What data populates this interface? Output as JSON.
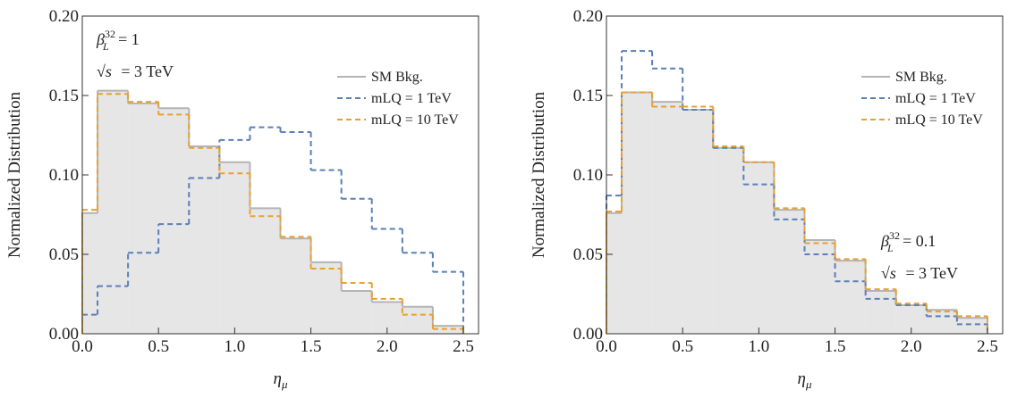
{
  "chart_data": [
    {
      "type": "histogram",
      "ylabel": "Normalized Distribution",
      "xlabel": "η",
      "xlabel_sub": "μ",
      "bins": [
        0,
        0.1,
        0.3,
        0.5,
        0.7,
        0.9,
        1.1,
        1.3,
        1.5,
        1.7,
        1.9,
        2.1,
        2.3,
        2.5
      ],
      "xlim": [
        0,
        2.6
      ],
      "ylim": [
        0,
        0.2
      ],
      "xticks": [
        {
          "value": 0,
          "label": "0.0"
        },
        {
          "value": 0.5,
          "label": "0.5"
        },
        {
          "value": 1,
          "label": "1.0"
        },
        {
          "value": 1.5,
          "label": "1.5"
        },
        {
          "value": 2,
          "label": "2.0"
        },
        {
          "value": 2.5,
          "label": "2.5"
        }
      ],
      "yticks": [
        {
          "value": 0,
          "label": "0.00"
        },
        {
          "value": 0.05,
          "label": "0.05"
        },
        {
          "value": 0.1,
          "label": "0.10"
        },
        {
          "value": 0.15,
          "label": "0.15"
        },
        {
          "value": 0.2,
          "label": "0.20"
        }
      ],
      "legend": "upper right",
      "annotations": [
        {
          "symbol": "β",
          "sub": "L",
          "sup": "32",
          "text": " = 1"
        },
        {
          "symbol": "√s",
          "text": " = 3 TeV"
        }
      ],
      "series": [
        {
          "name": "SM Bkg.",
          "color": "#b4b4b4",
          "fill": "#e6e6e6",
          "values": [
            0.076,
            0.153,
            0.145,
            0.142,
            0.118,
            0.108,
            0.079,
            0.06,
            0.045,
            0.027,
            0.02,
            0.017,
            0.005
          ]
        },
        {
          "name": "mLQ = 1 TeV",
          "color": "#5b7fb8",
          "dashed": true,
          "values": [
            0.012,
            0.03,
            0.051,
            0.069,
            0.098,
            0.122,
            0.13,
            0.127,
            0.103,
            0.085,
            0.066,
            0.051,
            0.039
          ]
        },
        {
          "name": "mLQ = 10 TeV",
          "color": "#e8a030",
          "dashed": true,
          "values": [
            0.078,
            0.151,
            0.146,
            0.138,
            0.117,
            0.101,
            0.074,
            0.061,
            0.041,
            0.032,
            0.022,
            0.012,
            0.003
          ]
        }
      ]
    },
    {
      "type": "histogram",
      "ylabel": "Normalized Distribution",
      "xlabel": "η",
      "xlabel_sub": "μ",
      "bins": [
        0,
        0.1,
        0.3,
        0.5,
        0.7,
        0.9,
        1.1,
        1.3,
        1.5,
        1.7,
        1.9,
        2.1,
        2.3,
        2.5
      ],
      "xlim": [
        0,
        2.6
      ],
      "ylim": [
        0,
        0.2
      ],
      "xticks": [
        {
          "value": 0,
          "label": "0.0"
        },
        {
          "value": 0.5,
          "label": "0.5"
        },
        {
          "value": 1,
          "label": "1.0"
        },
        {
          "value": 1.5,
          "label": "1.5"
        },
        {
          "value": 2,
          "label": "2.0"
        },
        {
          "value": 2.5,
          "label": "2.5"
        }
      ],
      "yticks": [
        {
          "value": 0,
          "label": "0.00"
        },
        {
          "value": 0.05,
          "label": "0.05"
        },
        {
          "value": 0.1,
          "label": "0.10"
        },
        {
          "value": 0.15,
          "label": "0.15"
        },
        {
          "value": 0.2,
          "label": "0.20"
        }
      ],
      "legend": "upper right",
      "annotations": [
        {
          "symbol": "β",
          "sub": "L",
          "sup": "32",
          "text": " = 0.1"
        },
        {
          "symbol": "√s",
          "text": " = 3 TeV"
        }
      ],
      "series": [
        {
          "name": "SM Bkg.",
          "color": "#b4b4b4",
          "fill": "#e6e6e6",
          "values": [
            0.076,
            0.152,
            0.146,
            0.141,
            0.117,
            0.108,
            0.078,
            0.059,
            0.046,
            0.027,
            0.018,
            0.015,
            0.01
          ]
        },
        {
          "name": "mLQ = 1 TeV",
          "color": "#5b7fb8",
          "dashed": true,
          "values": [
            0.087,
            0.178,
            0.167,
            0.141,
            0.117,
            0.094,
            0.072,
            0.05,
            0.033,
            0.022,
            0.018,
            0.011,
            0.006
          ]
        },
        {
          "name": "mLQ = 10 TeV",
          "color": "#e8a030",
          "dashed": true,
          "values": [
            0.077,
            0.152,
            0.143,
            0.143,
            0.118,
            0.108,
            0.079,
            0.057,
            0.047,
            0.028,
            0.019,
            0.014,
            0.011
          ]
        }
      ]
    }
  ]
}
